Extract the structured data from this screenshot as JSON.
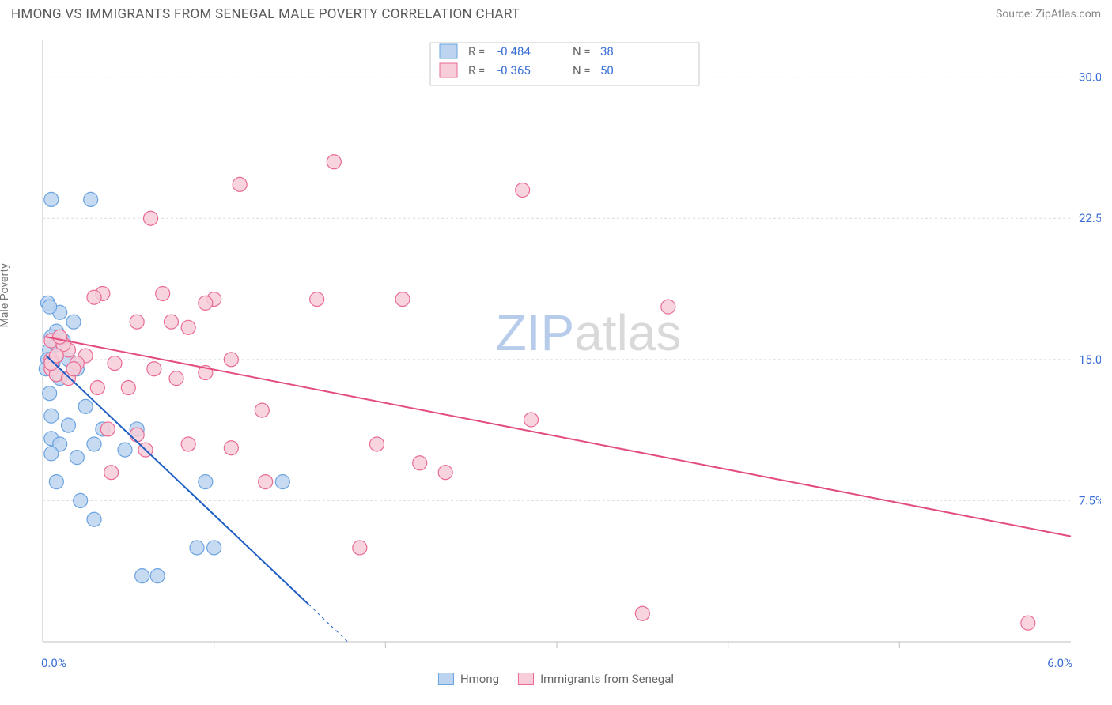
{
  "header": {
    "title": "HMONG VS IMMIGRANTS FROM SENEGAL MALE POVERTY CORRELATION CHART",
    "source_label": "Source: ",
    "source_name": "ZipAtlas.com"
  },
  "chart": {
    "type": "scatter",
    "xlim": [
      0.0,
      6.0
    ],
    "ylim": [
      0.0,
      32.0
    ],
    "x_axis_labels": {
      "left": "0.0%",
      "right": "6.0%"
    },
    "y_ticks": [
      7.5,
      15.0,
      22.5,
      30.0
    ],
    "y_tick_labels": [
      "7.5%",
      "15.0%",
      "22.5%",
      "30.0%"
    ],
    "ylabel": "Male Poverty",
    "grid_color": "#dcdcdc",
    "axis_color": "#bfbfbf",
    "tick_color": "#bfbfbf",
    "background_color": "#ffffff",
    "watermark": {
      "text_1": "ZIP",
      "text_2": "atlas",
      "color_1": "#b7cceb",
      "color_2": "#d9d9d9"
    },
    "top_legend": {
      "border_color": "#c9c9c9",
      "rows": [
        {
          "swatch_fill": "#bcd4f0",
          "swatch_stroke": "#6aa3e0",
          "r_label": "R =",
          "r_value": "-0.484",
          "n_label": "N =",
          "n_value": "38"
        },
        {
          "swatch_fill": "#f6cdd8",
          "swatch_stroke": "#e96b94",
          "r_label": "R =",
          "r_value": "-0.365",
          "n_label": "N =",
          "n_value": "50"
        }
      ],
      "value_color": "#3b6fd6",
      "label_color": "#6a6a6a"
    },
    "bottom_legend": {
      "items": [
        {
          "label": "Hmong",
          "fill": "#bcd4f0",
          "stroke": "#6aa3e0"
        },
        {
          "label": "Immigrants from Senegal",
          "fill": "#f6cdd8",
          "stroke": "#e96b94"
        }
      ]
    },
    "series": [
      {
        "name": "Hmong",
        "marker_fill": "#bcd4f0",
        "marker_stroke": "#6aa3e0",
        "marker_radius": 9,
        "marker_opacity": 0.85,
        "trend_color": "#1f5fc4",
        "trend_width": 2,
        "trend_start": [
          0.02,
          15.2
        ],
        "trend_end_solid": [
          1.55,
          2.0
        ],
        "trend_end_dash": [
          1.78,
          0.0
        ],
        "points": [
          [
            0.05,
            23.5
          ],
          [
            0.28,
            23.5
          ],
          [
            0.03,
            18.0
          ],
          [
            0.1,
            17.5
          ],
          [
            0.18,
            17.0
          ],
          [
            0.08,
            16.5
          ],
          [
            0.05,
            16.2
          ],
          [
            0.12,
            16.0
          ],
          [
            0.04,
            15.5
          ],
          [
            0.03,
            15.0
          ],
          [
            0.15,
            15.0
          ],
          [
            0.06,
            14.8
          ],
          [
            0.02,
            14.5
          ],
          [
            0.2,
            14.5
          ],
          [
            0.1,
            14.0
          ],
          [
            0.04,
            13.2
          ],
          [
            0.25,
            12.5
          ],
          [
            0.05,
            12.0
          ],
          [
            0.15,
            11.5
          ],
          [
            0.35,
            11.3
          ],
          [
            0.55,
            11.3
          ],
          [
            0.05,
            10.8
          ],
          [
            0.1,
            10.5
          ],
          [
            0.3,
            10.5
          ],
          [
            0.48,
            10.2
          ],
          [
            0.05,
            10.0
          ],
          [
            0.2,
            9.8
          ],
          [
            0.08,
            8.5
          ],
          [
            0.95,
            8.5
          ],
          [
            1.4,
            8.5
          ],
          [
            0.22,
            7.5
          ],
          [
            0.3,
            6.5
          ],
          [
            0.9,
            5.0
          ],
          [
            1.0,
            5.0
          ],
          [
            0.58,
            3.5
          ],
          [
            0.67,
            3.5
          ],
          [
            0.08,
            15.8
          ],
          [
            0.04,
            17.8
          ]
        ]
      },
      {
        "name": "Immigrants from Senegal",
        "marker_fill": "#f6cdd8",
        "marker_stroke": "#e96b94",
        "marker_radius": 9,
        "marker_opacity": 0.85,
        "trend_color": "#e34d7e",
        "trend_width": 2,
        "trend_start": [
          0.02,
          16.2
        ],
        "trend_end_solid": [
          6.0,
          5.6
        ],
        "points": [
          [
            1.7,
            25.5
          ],
          [
            1.15,
            24.3
          ],
          [
            2.8,
            24.0
          ],
          [
            0.35,
            18.5
          ],
          [
            0.63,
            22.5
          ],
          [
            0.7,
            18.5
          ],
          [
            1.0,
            18.2
          ],
          [
            1.6,
            18.2
          ],
          [
            2.1,
            18.2
          ],
          [
            3.65,
            17.8
          ],
          [
            0.55,
            17.0
          ],
          [
            0.75,
            17.0
          ],
          [
            0.85,
            16.7
          ],
          [
            1.1,
            15.0
          ],
          [
            0.65,
            14.5
          ],
          [
            0.05,
            16.0
          ],
          [
            0.15,
            15.5
          ],
          [
            0.25,
            15.2
          ],
          [
            0.05,
            15.0
          ],
          [
            0.05,
            14.5
          ],
          [
            0.2,
            14.8
          ],
          [
            0.08,
            14.2
          ],
          [
            0.15,
            14.0
          ],
          [
            0.32,
            13.5
          ],
          [
            0.5,
            13.5
          ],
          [
            0.38,
            11.3
          ],
          [
            0.55,
            11.0
          ],
          [
            0.85,
            10.5
          ],
          [
            1.1,
            10.3
          ],
          [
            2.85,
            11.8
          ],
          [
            1.95,
            10.5
          ],
          [
            2.2,
            9.5
          ],
          [
            2.35,
            9.0
          ],
          [
            1.3,
            8.5
          ],
          [
            0.4,
            9.0
          ],
          [
            0.12,
            15.8
          ],
          [
            1.85,
            5.0
          ],
          [
            3.5,
            1.5
          ],
          [
            5.75,
            1.0
          ],
          [
            0.05,
            14.8
          ],
          [
            0.1,
            16.2
          ],
          [
            0.95,
            14.3
          ],
          [
            0.08,
            15.2
          ],
          [
            0.3,
            18.3
          ],
          [
            0.18,
            14.5
          ],
          [
            0.42,
            14.8
          ],
          [
            0.6,
            10.2
          ],
          [
            0.78,
            14.0
          ],
          [
            1.28,
            12.3
          ],
          [
            0.95,
            18.0
          ]
        ]
      }
    ]
  }
}
